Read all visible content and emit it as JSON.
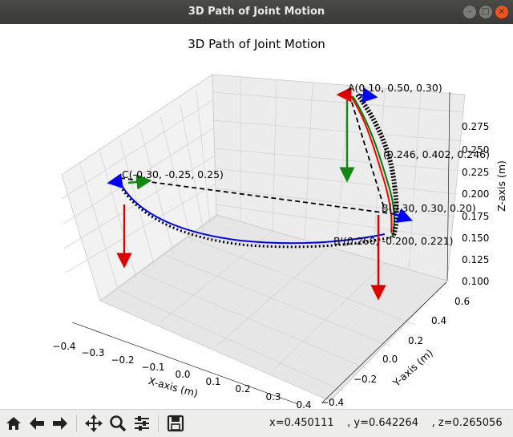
{
  "window": {
    "title": "3D Path of Joint Motion",
    "buttons": [
      "minimize",
      "maximize",
      "close"
    ]
  },
  "plot": {
    "title": "3D Path of Joint Motion",
    "x_axis_label": "X-axis (m)",
    "y_axis_label": "Y-axis (m)",
    "z_axis_label": "Z-axis (m)",
    "x_ticks": [
      "−0.4",
      "−0.3",
      "−0.2",
      "−0.1",
      "0.0",
      "0.1",
      "0.2",
      "0.3",
      "0.4"
    ],
    "y_ticks": [
      "−0.4",
      "−0.2",
      "0.0",
      "0.2",
      "0.4",
      "0.6"
    ],
    "z_ticks": [
      "0.100",
      "0.125",
      "0.150",
      "0.175",
      "0.200",
      "0.225",
      "0.250",
      "0.275"
    ],
    "annotations": {
      "A": "A(0.10, 0.50, 0.30)",
      "B": "B(0.30, 0.30, 0.20)",
      "C": "C(-0.30, -0.25, 0.25)",
      "mid": "(0.246, 0.402, 0.246)",
      "Bp": "B'(0.260, -0.200, 0.221)"
    },
    "colors": {
      "path_red": "#ff0000",
      "path_green": "#008000",
      "path_blue": "#0000ff",
      "path_black": "#000000",
      "arrow_red": "#dd0000",
      "arrow_green": "#118811",
      "arrow_blue": "#0000ff",
      "pane": "#f2f2f2",
      "grid": "#d4d4d4"
    }
  },
  "toolbar": {
    "buttons": [
      "home-icon",
      "back-arrow-icon",
      "forward-arrow-icon",
      "pan-icon",
      "zoom-icon",
      "configure-subplots-icon",
      "save-icon"
    ],
    "coords_x": "x=0.450111",
    "coords_y": ", y=0.642264",
    "coords_z": ", z=0.265056"
  }
}
